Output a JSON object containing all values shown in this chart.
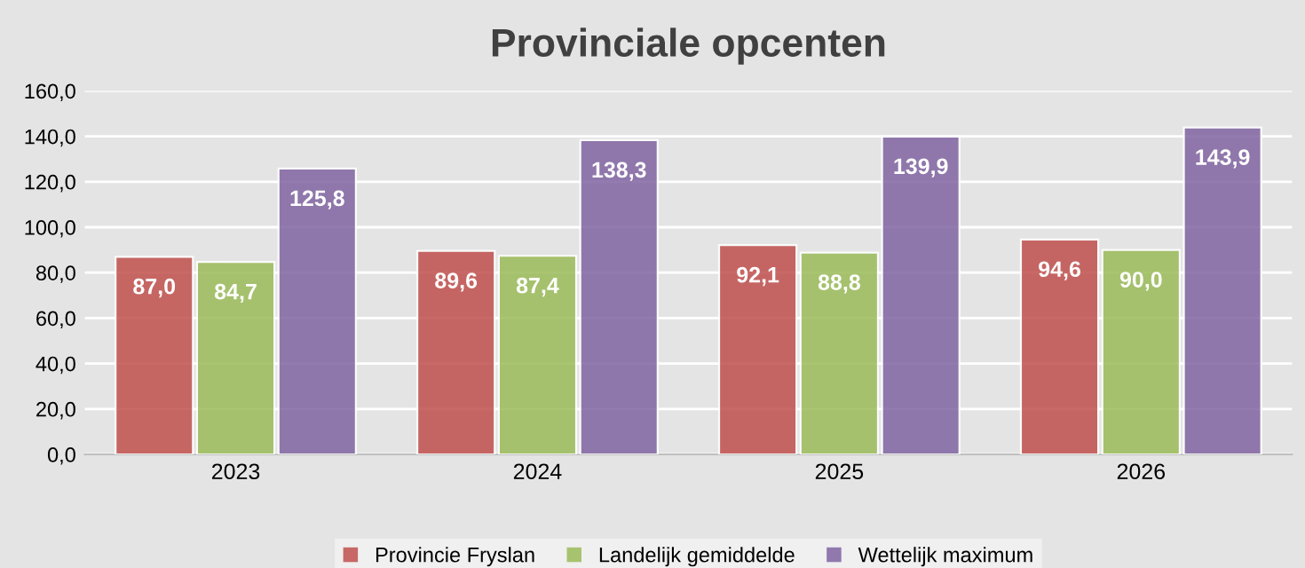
{
  "chart_data": {
    "type": "bar",
    "title": "Provinciale opcenten",
    "categories": [
      "2023",
      "2024",
      "2025",
      "2026"
    ],
    "series": [
      {
        "name": "Provincie Fryslan",
        "color": "#c0504d",
        "values": [
          87.0,
          89.6,
          92.1,
          94.6
        ],
        "value_labels": [
          "87,0",
          "89,6",
          "92,1",
          "94,6"
        ]
      },
      {
        "name": "Landelijk gemiddelde",
        "color": "#9bbb59",
        "values": [
          84.7,
          87.4,
          88.8,
          90.0
        ],
        "value_labels": [
          "84,7",
          "87,4",
          "88,8",
          "90,0"
        ]
      },
      {
        "name": "Wettelijk maximum",
        "color": "#8064a2",
        "values": [
          125.8,
          138.3,
          139.9,
          143.9
        ],
        "value_labels": [
          "125,8",
          "138,3",
          "139,9",
          "143,9"
        ]
      }
    ],
    "ylim": [
      0,
      160
    ],
    "yticks": [
      {
        "value": 0,
        "label": "0,0"
      },
      {
        "value": 20,
        "label": "20,0"
      },
      {
        "value": 40,
        "label": "40,0"
      },
      {
        "value": 60,
        "label": "60,0"
      },
      {
        "value": 80,
        "label": "80,0"
      },
      {
        "value": 100,
        "label": "100,0"
      },
      {
        "value": 120,
        "label": "120,0"
      },
      {
        "value": 140,
        "label": "140,0"
      },
      {
        "value": 160,
        "label": "160,0"
      }
    ],
    "grid": "y",
    "legend": "bottom"
  }
}
